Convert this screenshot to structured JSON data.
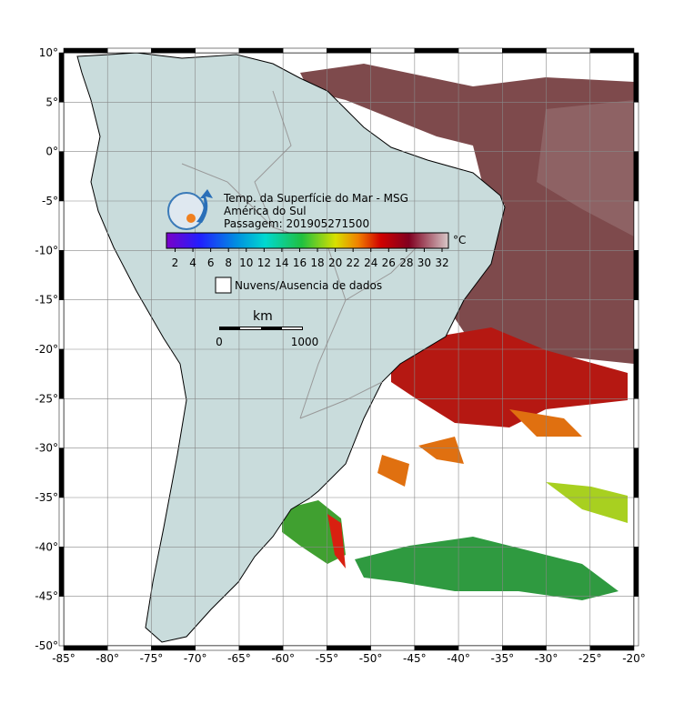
{
  "map": {
    "lat_labels": [
      "10°",
      "5°",
      "0°",
      "-5°",
      "-10°",
      "-15°",
      "-20°",
      "-25°",
      "-30°",
      "-35°",
      "-40°",
      "-45°",
      "-50°"
    ],
    "lon_labels": [
      "-85°",
      "-80°",
      "-75°",
      "-70°",
      "-65°",
      "-60°",
      "-55°",
      "-50°",
      "-45°",
      "-40°",
      "-35°",
      "-30°",
      "-25°",
      "-20°"
    ]
  },
  "legend": {
    "title_lines": [
      "Temp. da Superfície do Mar - MSG",
      "América do Sul",
      "Passagem: 201905271500"
    ],
    "colorbar_ticks": [
      "2",
      "4",
      "6",
      "8",
      "10",
      "12",
      "14",
      "16",
      "18",
      "20",
      "22",
      "24",
      "26",
      "28",
      "30",
      "32"
    ],
    "unit": "°C",
    "cloud_label": "Nuvens/Ausencia de dados"
  },
  "scale_bar": {
    "unit": "km",
    "labels": [
      "0",
      "1000"
    ]
  }
}
